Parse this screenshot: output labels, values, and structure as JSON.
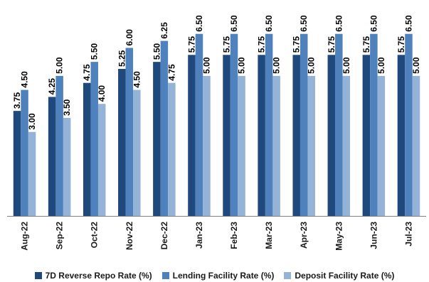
{
  "chart_data": {
    "type": "bar",
    "categories": [
      "Aug-22",
      "Sep-22",
      "Oct-22",
      "Nov-22",
      "Dec-22",
      "Jan-23",
      "Feb-23",
      "Mar-23",
      "Apr-23",
      "May-23",
      "Jun-23",
      "Jul-23"
    ],
    "series": [
      {
        "name": "7D Reverse Repo Rate (%)",
        "color": "#1f497d",
        "values": [
          3.75,
          4.25,
          4.75,
          5.25,
          5.5,
          5.75,
          5.75,
          5.75,
          5.75,
          5.75,
          5.75,
          5.75
        ],
        "labels": [
          "3.75",
          "4.25",
          "4.75",
          "5.25",
          "5.50",
          "5.75",
          "5.75",
          "5.75",
          "5.75",
          "5.75",
          "5.75",
          "5.75"
        ]
      },
      {
        "name": "Lending Facility Rate (%)",
        "color": "#4f81bd",
        "values": [
          4.5,
          5.0,
          5.5,
          6.0,
          6.25,
          6.5,
          6.5,
          6.5,
          6.5,
          6.5,
          6.5,
          6.5
        ],
        "labels": [
          "4.50",
          "5.00",
          "5.50",
          "6.00",
          "6.25",
          "6.50",
          "6.50",
          "6.50",
          "6.50",
          "6.50",
          "6.50",
          "6.50"
        ]
      },
      {
        "name": "Deposit Facility Rate (%)",
        "color": "#95b3d7",
        "values": [
          3.0,
          3.5,
          4.0,
          4.5,
          4.75,
          5.0,
          5.0,
          5.0,
          5.0,
          5.0,
          5.0,
          5.0
        ],
        "labels": [
          "3.00",
          "3.50",
          "4.00",
          "4.50",
          "4.75",
          "5.00",
          "5.00",
          "5.00",
          "5.00",
          "5.00",
          "5.00",
          "5.00"
        ]
      }
    ],
    "title": "",
    "xlabel": "",
    "ylabel": "",
    "ylim": [
      0,
      7
    ],
    "grid": false,
    "legend_position": "bottom"
  }
}
